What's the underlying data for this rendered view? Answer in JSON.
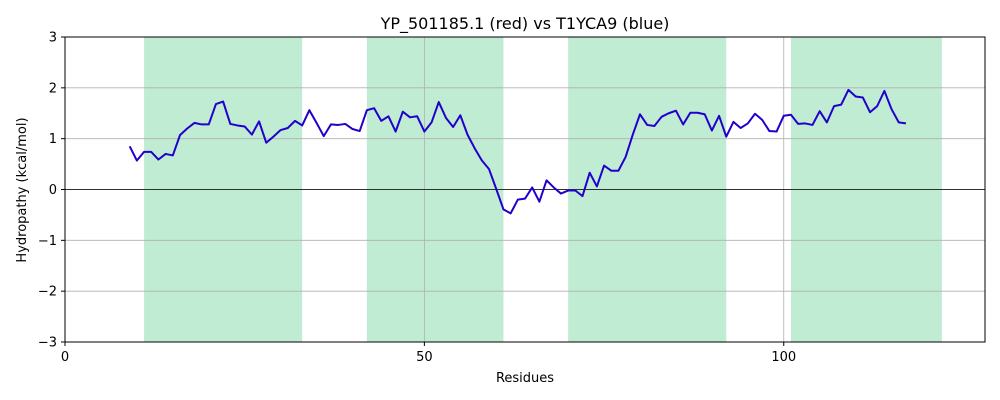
{
  "chart_data": {
    "type": "line",
    "title": "YP_501185.1 (red) vs T1YCA9 (blue)",
    "xlabel": "Residues",
    "ylabel": "Hydropathy (kcal/mol)",
    "xlim": [
      0,
      128
    ],
    "ylim": [
      -3,
      3
    ],
    "xticks": [
      0,
      50,
      100
    ],
    "yticks": [
      -3,
      -2,
      -1,
      0,
      1,
      2,
      3
    ],
    "xtick_labels": [
      "0",
      "50",
      "100"
    ],
    "ytick_labels": [
      "−3",
      "−2",
      "−1",
      "0",
      "1",
      "2",
      "3"
    ],
    "grid": true,
    "zero_line": true,
    "shaded_regions": [
      [
        11,
        33
      ],
      [
        42,
        61
      ],
      [
        70,
        92
      ],
      [
        101,
        122
      ]
    ],
    "colors": {
      "shade": "#c0ecd3",
      "line": "#2200cc",
      "grid": "#b0b0b0"
    },
    "series": [
      {
        "x": [
          9,
          10,
          11,
          12,
          13,
          14,
          15,
          16,
          17,
          18,
          19,
          20,
          21,
          22,
          23,
          24,
          25,
          26,
          27,
          28,
          29,
          30,
          31,
          32,
          33,
          34,
          35,
          36,
          37,
          38,
          39,
          40,
          41,
          42,
          43,
          44,
          45,
          46,
          47,
          48,
          49,
          50,
          51,
          52,
          53,
          54,
          55,
          56,
          57,
          58,
          59,
          60,
          61,
          62,
          63,
          64,
          65,
          66,
          67,
          68,
          69,
          70,
          71,
          72,
          73,
          74,
          75,
          76,
          77,
          78,
          79,
          80,
          81,
          82,
          83,
          84,
          85,
          86,
          87,
          88,
          89,
          90,
          91,
          92,
          93,
          94,
          95,
          96,
          97,
          98,
          99,
          100,
          101,
          102,
          103,
          104,
          105,
          106,
          107,
          108,
          109,
          110,
          111,
          112,
          113,
          114,
          115,
          116,
          117
        ],
        "values": [
          0.85,
          0.57,
          0.74,
          0.74,
          0.59,
          0.7,
          0.67,
          1.07,
          1.2,
          1.31,
          1.28,
          1.28,
          1.68,
          1.73,
          1.29,
          1.26,
          1.24,
          1.08,
          1.34,
          0.92,
          1.04,
          1.17,
          1.21,
          1.35,
          1.26,
          1.56,
          1.31,
          1.05,
          1.28,
          1.27,
          1.29,
          1.19,
          1.15,
          1.56,
          1.6,
          1.35,
          1.44,
          1.14,
          1.53,
          1.42,
          1.44,
          1.14,
          1.32,
          1.72,
          1.41,
          1.23,
          1.46,
          1.08,
          0.81,
          0.57,
          0.4,
          0.01,
          -0.39,
          -0.47,
          -0.2,
          -0.18,
          0.04,
          -0.24,
          0.18,
          0.04,
          -0.08,
          -0.02,
          -0.02,
          -0.13,
          0.33,
          0.06,
          0.47,
          0.37,
          0.37,
          0.64,
          1.08,
          1.48,
          1.27,
          1.25,
          1.43,
          1.5,
          1.55,
          1.28,
          1.51,
          1.51,
          1.48,
          1.16,
          1.45,
          1.04,
          1.33,
          1.21,
          1.3,
          1.49,
          1.37,
          1.15,
          1.14,
          1.45,
          1.47,
          1.29,
          1.3,
          1.27,
          1.54,
          1.32,
          1.64,
          1.67,
          1.96,
          1.83,
          1.81,
          1.52,
          1.64,
          1.94,
          1.58,
          1.32,
          1.3
        ]
      }
    ]
  }
}
